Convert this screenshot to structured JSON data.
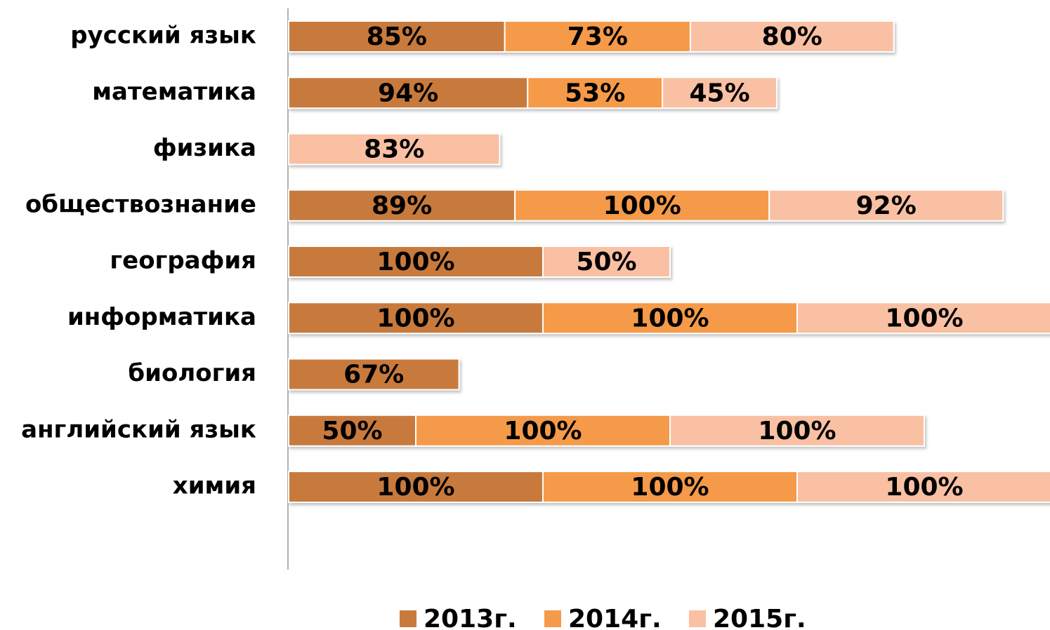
{
  "chart_data": {
    "type": "stacked-bar-horizontal",
    "categories": [
      "русский язык",
      "математика",
      "физика",
      "обществознание",
      "география",
      "информатика",
      "биология",
      "английский язык",
      "химия"
    ],
    "series": [
      {
        "name": "2013г.",
        "color": "#c87a3e",
        "values": [
          85,
          94,
          null,
          89,
          100,
          100,
          67,
          50,
          100
        ],
        "value_labels": [
          "85%",
          "94%",
          null,
          "89%",
          "100%",
          "100%",
          "67%",
          "50%",
          "100%"
        ]
      },
      {
        "name": "2014г.",
        "color": "#f59a4a",
        "values": [
          73,
          53,
          null,
          100,
          null,
          100,
          null,
          100,
          100
        ],
        "value_labels": [
          "73%",
          "53%",
          null,
          "100%",
          null,
          "100%",
          null,
          "100%",
          "100%"
        ]
      },
      {
        "name": "2015г.",
        "color": "#f9c0a3",
        "values": [
          80,
          45,
          83,
          92,
          50,
          100,
          null,
          100,
          100
        ],
        "value_labels": [
          "80%",
          "45%",
          "83%",
          "92%",
          "50%",
          "100%",
          null,
          "100%",
          "100%"
        ]
      }
    ],
    "xlim": [
      0,
      300
    ],
    "legend": "bottom"
  }
}
